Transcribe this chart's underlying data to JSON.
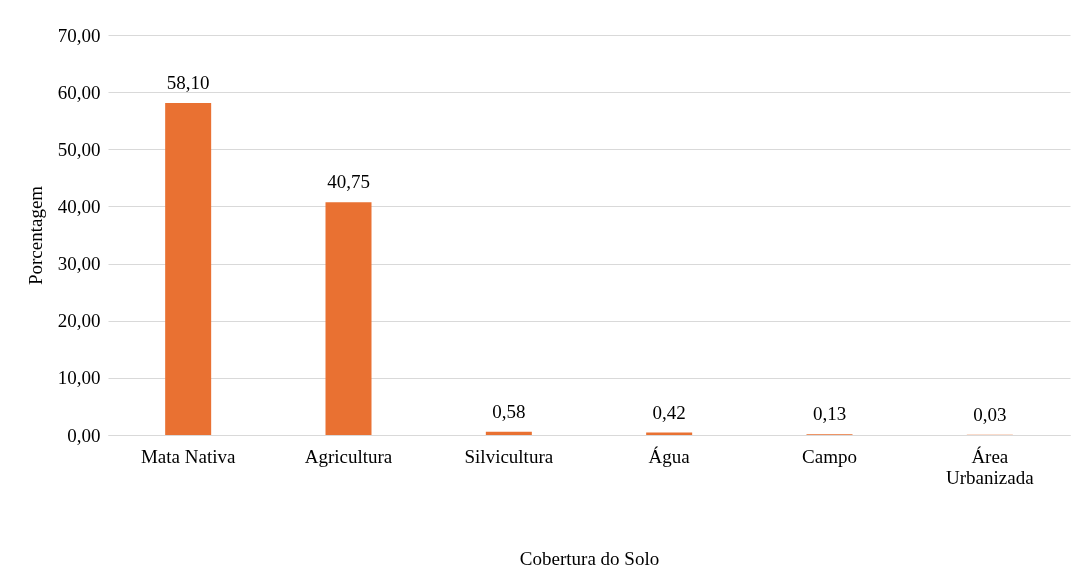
{
  "chart_data": {
    "type": "bar",
    "xlabel": "Cobertura do Solo",
    "ylabel": "Porcentagem",
    "categories": [
      "Mata Nativa",
      "Agricultura",
      "Silvicultura",
      "Água",
      "Campo",
      "Área Urbanizada"
    ],
    "values": [
      58.1,
      40.75,
      0.58,
      0.42,
      0.13,
      0.03
    ],
    "color": "#e97132",
    "value_labels": [
      "58,10",
      "40,75",
      "0,58",
      "0,42",
      "0,13",
      "0,03"
    ],
    "ylim": [
      0,
      70
    ],
    "yticks": [
      {
        "value": 0,
        "label": "0,00"
      },
      {
        "value": 10,
        "label": "10,00"
      },
      {
        "value": 20,
        "label": "20,00"
      },
      {
        "value": 30,
        "label": "30,00"
      },
      {
        "value": 40,
        "label": "40,00"
      },
      {
        "value": 50,
        "label": "50,00"
      },
      {
        "value": 60,
        "label": "60,00"
      },
      {
        "value": 70,
        "label": "70,00"
      }
    ],
    "grid": "y"
  }
}
